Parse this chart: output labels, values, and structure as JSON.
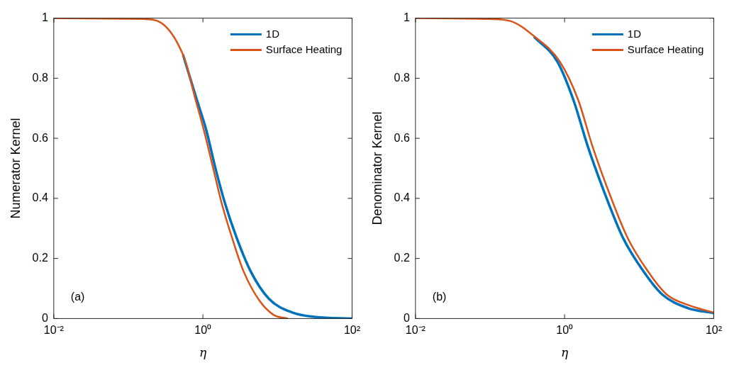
{
  "chart_data": [
    {
      "type": "line",
      "xlabel": "η",
      "ylabel": "Numerator Kernel",
      "log": "x",
      "xlim": [
        0.01,
        100
      ],
      "xticks": [
        {
          "value": 0.01,
          "label": "10⁻²"
        },
        {
          "value": 1,
          "label": "10⁰"
        },
        {
          "value": 100,
          "label": "10²"
        }
      ],
      "ylim": [
        0,
        1
      ],
      "yticks": [
        0,
        0.2,
        0.4,
        0.6,
        0.8,
        1
      ],
      "legend": "top right",
      "marker": "none",
      "annotations": [
        "(a)"
      ],
      "series": [
        {
          "name": "1D",
          "color": "#0072bd",
          "x": [
            0.541,
            0.832,
            1.11,
            1.48,
            1.97,
            2.82,
            4.37,
            7.67,
            15.8,
            32.4,
            100
          ],
          "values": [
            0.878,
            0.727,
            0.627,
            0.498,
            0.385,
            0.27,
            0.157,
            0.066,
            0.02,
            0.005,
            0
          ]
        },
        {
          "name": "Surface Heating",
          "color": "#d95319",
          "x": [
            0.01,
            0.1,
            0.212,
            0.541,
            0.8,
            1.03,
            1.38,
            1.78,
            2.45,
            3.51,
            5.79,
            8.91,
            13.8
          ],
          "values": [
            1,
            0.998,
            0.995,
            0.878,
            0.727,
            0.627,
            0.498,
            0.385,
            0.27,
            0.157,
            0.058,
            0.012,
            0
          ]
        }
      ]
    },
    {
      "type": "line",
      "xlabel": "η",
      "ylabel": "Denominator Kernel",
      "log": "x",
      "xlim": [
        0.01,
        100
      ],
      "xticks": [
        {
          "value": 0.01,
          "label": "10⁻²"
        },
        {
          "value": 1,
          "label": "10⁰"
        },
        {
          "value": 100,
          "label": "10²"
        }
      ],
      "ylim": [
        0,
        1
      ],
      "yticks": [
        0,
        0.2,
        0.4,
        0.6,
        0.8,
        1
      ],
      "legend": "top right",
      "marker": "none",
      "annotations": [
        "(b)"
      ],
      "series": [
        {
          "name": "1D",
          "color": "#0072bd",
          "x": [
            0.389,
            0.8,
            1.32,
            2.04,
            3.39,
            6.03,
            11.5,
            20.4,
            44.7,
            100
          ],
          "values": [
            0.938,
            0.855,
            0.726,
            0.574,
            0.422,
            0.27,
            0.156,
            0.08,
            0.035,
            0.018
          ]
        },
        {
          "name": "Surface Heating",
          "color": "#d95319",
          "x": [
            0.01,
            0.1,
            0.19,
            0.389,
            0.863,
            1.53,
            2.36,
            3.91,
            6.95,
            13.2,
            23.4,
            47.9,
            100
          ],
          "values": [
            1,
            0.997,
            0.99,
            0.94,
            0.855,
            0.726,
            0.574,
            0.422,
            0.27,
            0.156,
            0.08,
            0.043,
            0.02
          ]
        }
      ]
    }
  ]
}
